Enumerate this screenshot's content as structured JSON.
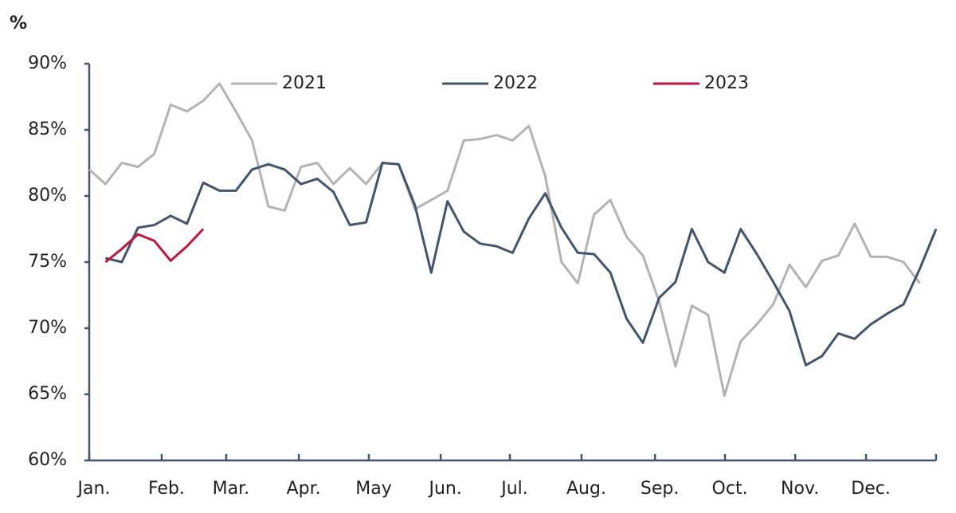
{
  "chart_data": {
    "type": "line",
    "y_label": "%",
    "x": [
      1,
      2,
      3,
      4,
      5,
      6,
      7,
      8,
      9,
      10,
      11,
      12,
      13,
      14,
      15,
      16,
      17,
      18,
      19,
      20,
      21,
      22,
      23,
      24,
      25,
      26,
      27,
      28,
      29,
      30,
      31,
      32,
      33,
      34,
      35,
      36,
      37,
      38,
      39,
      40,
      41,
      42,
      43,
      44,
      45,
      46,
      47,
      48,
      49,
      50,
      51,
      52,
      53
    ],
    "xlim": [
      1,
      53
    ],
    "xticks": [
      {
        "value": 1,
        "label": "Jan."
      },
      {
        "value": 5.45,
        "label": "Feb."
      },
      {
        "value": 9.41,
        "label": "Mar."
      },
      {
        "value": 13.87,
        "label": "Apr."
      },
      {
        "value": 18.17,
        "label": "May"
      },
      {
        "value": 22.58,
        "label": "Jun."
      },
      {
        "value": 26.83,
        "label": "Jul."
      },
      {
        "value": 31.23,
        "label": "Aug."
      },
      {
        "value": 35.74,
        "label": "Sep."
      },
      {
        "value": 40.04,
        "label": "Oct."
      },
      {
        "value": 44.35,
        "label": "Nov."
      },
      {
        "value": 48.7,
        "label": "Dec."
      }
    ],
    "ylim": [
      60,
      90
    ],
    "yticks": [
      {
        "value": 60,
        "label": "60%"
      },
      {
        "value": 65,
        "label": "65%"
      },
      {
        "value": 70,
        "label": "70%"
      },
      {
        "value": 75,
        "label": "75%"
      },
      {
        "value": 80,
        "label": "80%"
      },
      {
        "value": 85,
        "label": "85%"
      },
      {
        "value": 90,
        "label": "90%"
      }
    ],
    "legend": "top",
    "series": [
      {
        "name": "2021",
        "color": "#b3b3b3",
        "values": [
          82.0,
          80.9,
          82.5,
          82.2,
          83.2,
          86.9,
          86.4,
          87.2,
          88.5,
          86.4,
          84.2,
          79.2,
          78.9,
          82.2,
          82.5,
          80.9,
          82.1,
          80.9,
          82.5,
          82.4,
          79.0,
          79.7,
          80.4,
          84.2,
          84.3,
          84.6,
          84.2,
          85.3,
          81.5,
          75.0,
          73.4,
          78.6,
          79.7,
          76.9,
          75.5,
          72.0,
          67.1,
          71.7,
          71.0,
          64.9,
          69.0,
          70.3,
          71.8,
          74.8,
          73.1,
          75.1,
          75.5,
          77.9,
          75.4,
          75.4,
          75.0,
          73.4,
          null
        ]
      },
      {
        "name": "2022",
        "color": "#44546a",
        "values": [
          null,
          75.3,
          75.0,
          77.6,
          77.8,
          78.5,
          77.9,
          81.0,
          80.4,
          80.4,
          82.0,
          82.4,
          82.0,
          80.9,
          81.3,
          80.3,
          77.8,
          78.0,
          82.5,
          82.4,
          79.3,
          74.2,
          79.6,
          77.3,
          76.4,
          76.2,
          75.7,
          78.3,
          80.2,
          77.6,
          75.7,
          75.6,
          74.2,
          70.7,
          68.9,
          72.3,
          73.5,
          77.5,
          75.0,
          74.2,
          77.5,
          75.6,
          73.5,
          71.3,
          67.2,
          67.9,
          69.6,
          69.2,
          70.3,
          71.1,
          71.8,
          74.5,
          77.5
        ]
      },
      {
        "name": "2023",
        "color": "#c0143c",
        "values": [
          null,
          75.0,
          76.0,
          77.1,
          76.6,
          75.1,
          76.2,
          77.5,
          null,
          null,
          null,
          null,
          null,
          null,
          null,
          null,
          null,
          null,
          null,
          null,
          null,
          null,
          null,
          null,
          null,
          null,
          null,
          null,
          null,
          null,
          null,
          null,
          null,
          null,
          null,
          null,
          null,
          null,
          null,
          null,
          null,
          null,
          null,
          null,
          null,
          null,
          null,
          null,
          null,
          null,
          null,
          null,
          null
        ]
      }
    ]
  }
}
